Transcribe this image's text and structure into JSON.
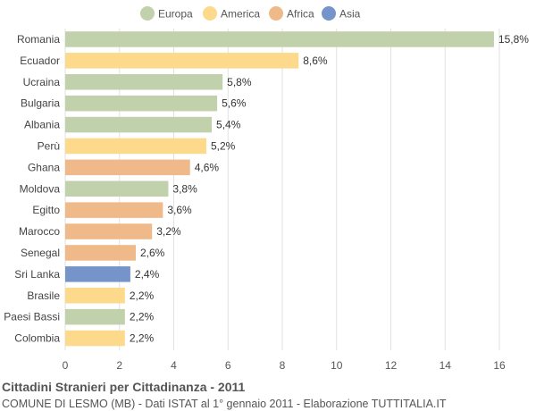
{
  "chart_data": {
    "type": "bar",
    "orientation": "horizontal",
    "title": "Cittadini Stranieri per Cittadinanza - 2011",
    "subtitle": "COMUNE DI LESMO (MB) - Dati ISTAT al 1° gennaio 2011 - Elaborazione TUTTITALIA.IT",
    "xlim": [
      0,
      16
    ],
    "xticks": [
      "0",
      "2",
      "4",
      "6",
      "8",
      "10",
      "12",
      "14",
      "16"
    ],
    "grid": true,
    "legend_position": "top-center",
    "legend": [
      {
        "name": "Europa",
        "color": "#c0d1ab"
      },
      {
        "name": "America",
        "color": "#fdd98b"
      },
      {
        "name": "Africa",
        "color": "#f0b98a"
      },
      {
        "name": "Asia",
        "color": "#7594c9"
      }
    ],
    "categories": [
      "Romania",
      "Ecuador",
      "Ucraina",
      "Bulgaria",
      "Albania",
      "Perù",
      "Ghana",
      "Moldova",
      "Egitto",
      "Marocco",
      "Senegal",
      "Sri Lanka",
      "Brasile",
      "Paesi Bassi",
      "Colombia"
    ],
    "values": [
      15.8,
      8.6,
      5.8,
      5.6,
      5.4,
      5.2,
      4.6,
      3.8,
      3.6,
      3.2,
      2.6,
      2.4,
      2.2,
      2.2,
      2.2
    ],
    "value_labels": [
      "15,8%",
      "8,6%",
      "5,8%",
      "5,6%",
      "5,4%",
      "5,2%",
      "4,6%",
      "3,8%",
      "3,6%",
      "3,2%",
      "2,6%",
      "2,4%",
      "2,2%",
      "2,2%",
      "2,2%"
    ],
    "groups": [
      "Europa",
      "America",
      "Europa",
      "Europa",
      "Europa",
      "America",
      "Africa",
      "Europa",
      "Africa",
      "Africa",
      "Africa",
      "Asia",
      "America",
      "Europa",
      "America"
    ]
  }
}
